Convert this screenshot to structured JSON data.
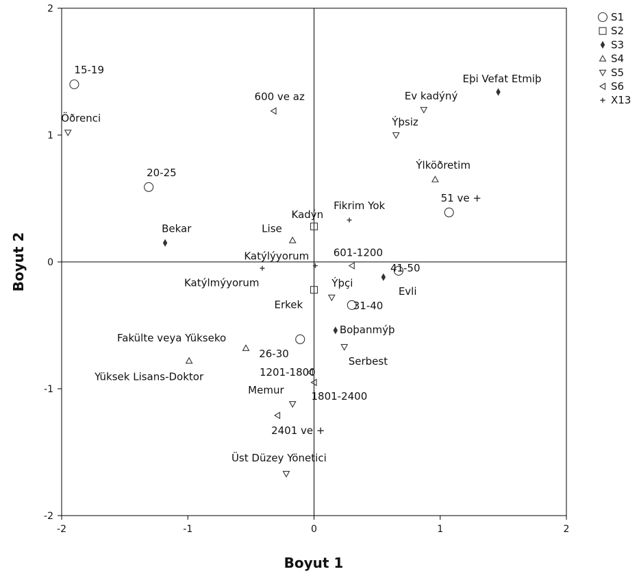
{
  "chart_data": {
    "type": "scatter",
    "xlabel": "Boyut 1",
    "ylabel": "Boyut 2",
    "xlim": [
      -2,
      2
    ],
    "ylim": [
      -2,
      2
    ],
    "xticks": [
      "-2",
      "-1",
      "0",
      "1",
      "2"
    ],
    "yticks": [
      "2",
      "1",
      "0",
      "-1",
      "-2"
    ],
    "reference_lines": {
      "x": 0,
      "y": 0
    },
    "legend_position": "top-right, outside plot",
    "series": [
      {
        "name": "S1",
        "marker": "circle",
        "points": [
          {
            "label": "15-19",
            "x": -1.9,
            "y": 1.4
          },
          {
            "label": "20-25",
            "x": -1.31,
            "y": 0.59
          },
          {
            "label": "51 ve +",
            "x": 1.07,
            "y": 0.39
          },
          {
            "label": "41-50",
            "x": 0.67,
            "y": -0.07
          },
          {
            "label": "31-40",
            "x": 0.3,
            "y": -0.34
          },
          {
            "label": "26-30",
            "x": -0.11,
            "y": -0.61
          }
        ]
      },
      {
        "name": "S2",
        "marker": "square",
        "points": [
          {
            "label": "Kadýn",
            "x": 0.0,
            "y": 0.28
          },
          {
            "label": "Erkek",
            "x": 0.0,
            "y": -0.22
          }
        ]
      },
      {
        "name": "S3",
        "marker": "diamond",
        "points": [
          {
            "label": "Eþi Vefat Etmiþ",
            "x": 1.46,
            "y": 1.34
          },
          {
            "label": "Bekar",
            "x": -1.18,
            "y": 0.15
          },
          {
            "label": "Evli",
            "x": 0.55,
            "y": -0.12
          },
          {
            "label": "Boþanmýþ",
            "x": 0.17,
            "y": -0.54
          }
        ]
      },
      {
        "name": "S4",
        "marker": "triangle-up",
        "points": [
          {
            "label": "Ýlköðretim",
            "x": 0.96,
            "y": 0.65
          },
          {
            "label": "Lise",
            "x": -0.17,
            "y": 0.17
          },
          {
            "label": "Fakülte veya Yükseko",
            "x": -0.54,
            "y": -0.68
          },
          {
            "label": "Yüksek Lisans-Doktor",
            "x": -0.99,
            "y": -0.78
          }
        ]
      },
      {
        "name": "S5",
        "marker": "triangle-down",
        "points": [
          {
            "label": "Ev kadýný",
            "x": 0.87,
            "y": 1.2
          },
          {
            "label": "Ýþsiz",
            "x": 0.65,
            "y": 1.0
          },
          {
            "label": "Öðrenci",
            "x": -1.95,
            "y": 1.02
          },
          {
            "label": "Ýþçi",
            "x": 0.14,
            "y": -0.28
          },
          {
            "label": "Serbest",
            "x": 0.24,
            "y": -0.67
          },
          {
            "label": "Memur",
            "x": -0.17,
            "y": -1.12
          },
          {
            "label": "Üst Düzey Yönetici",
            "x": -0.22,
            "y": -1.67
          }
        ]
      },
      {
        "name": "S6",
        "marker": "triangle-left",
        "points": [
          {
            "label": "600 ve az",
            "x": -0.32,
            "y": 1.19
          },
          {
            "label": "601-1200",
            "x": 0.3,
            "y": -0.03
          },
          {
            "label": "1201-1800",
            "x": -0.03,
            "y": -0.87
          },
          {
            "label": "1801-2400",
            "x": 0.0,
            "y": -0.95
          },
          {
            "label": "2401 ve +",
            "x": -0.29,
            "y": -1.21
          }
        ]
      },
      {
        "name": "X13",
        "marker": "plus",
        "points": [
          {
            "label": "Fikrim Yok",
            "x": 0.28,
            "y": 0.33
          },
          {
            "label": "Katýlýyorum",
            "x": 0.01,
            "y": -0.03
          },
          {
            "label": "Katýlmýyorum",
            "x": -0.41,
            "y": -0.05
          }
        ]
      }
    ]
  }
}
